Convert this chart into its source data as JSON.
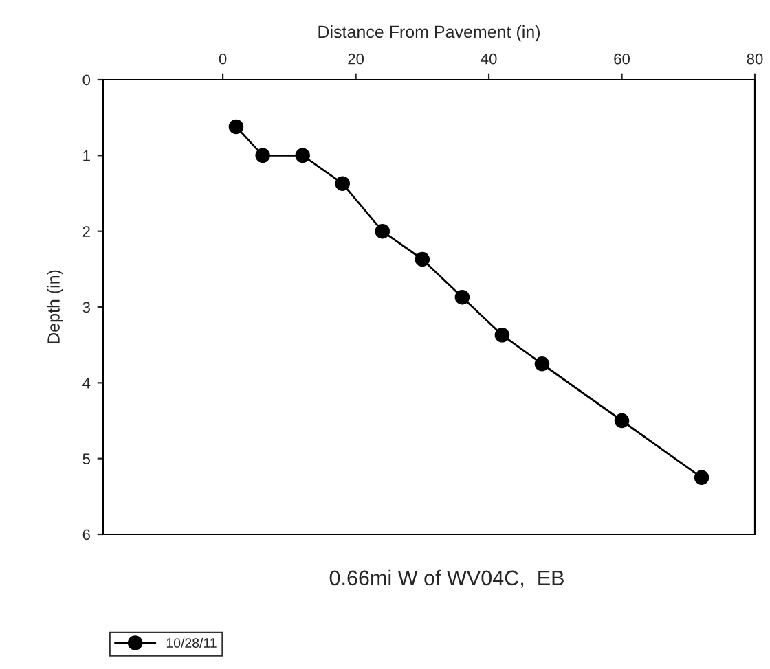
{
  "chart_data": {
    "type": "line",
    "xlabel": "Distance From Pavement (in)",
    "ylabel": "Depth (in)",
    "x": [
      2,
      6,
      12,
      18,
      24,
      30,
      36,
      42,
      48,
      60,
      72
    ],
    "series": [
      {
        "name": "10/28/11",
        "color": "#000000",
        "values": [
          0.62,
          1.0,
          1.0,
          1.37,
          2.0,
          2.37,
          2.87,
          3.37,
          3.75,
          4.5,
          5.25
        ]
      }
    ],
    "xlim": [
      -18,
      80
    ],
    "xticks": [
      0,
      20,
      40,
      60,
      80
    ],
    "ylim": [
      6,
      0
    ],
    "yticks": [
      0,
      1,
      2,
      3,
      4,
      5,
      6
    ],
    "annotations": [
      "0.66mi W of WV04C,  EB"
    ],
    "marker": "circle",
    "line_style": "solid",
    "grid": false,
    "legend": "bottom left"
  }
}
